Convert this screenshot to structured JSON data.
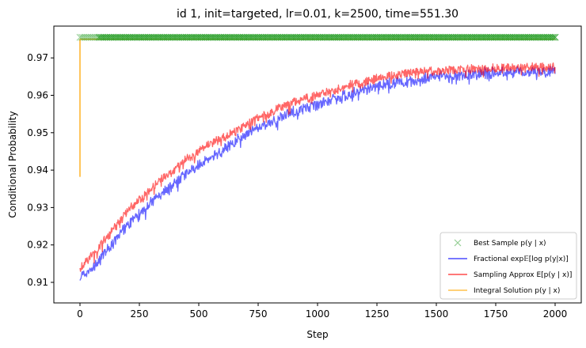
{
  "chart_data": {
    "type": "line",
    "title": "id 1, init=targeted, lr=0.01, k=2500, time=551.30",
    "xlabel": "Step",
    "ylabel": "Conditional Probability",
    "xlim": [
      -110,
      2110
    ],
    "ylim": [
      0.9045,
      0.9785
    ],
    "xticks": [
      0,
      250,
      500,
      750,
      1000,
      1250,
      1500,
      1750,
      2000
    ],
    "yticks": [
      0.91,
      0.92,
      0.93,
      0.94,
      0.95,
      0.96,
      0.97
    ],
    "ytick_labels": [
      "0.91",
      "0.92",
      "0.93",
      "0.94",
      "0.95",
      "0.96",
      "0.97"
    ],
    "grid": false,
    "legend_position": "lower-right",
    "series": [
      {
        "name": "Best Sample p(y | x)",
        "kind": "scatter-x",
        "color": "#2ca02c",
        "constant_y": 0.9755,
        "x_range": [
          0,
          2000
        ],
        "note_values": "one x-marker per step, all at ~0.9755"
      },
      {
        "name": "Fractional exp E[log p(y|x)]",
        "kind": "line",
        "color": "#0000ff",
        "alpha": 0.6,
        "x": [
          0,
          50,
          100,
          150,
          200,
          250,
          300,
          350,
          400,
          450,
          500,
          550,
          600,
          650,
          700,
          750,
          800,
          850,
          900,
          950,
          1000,
          1050,
          1100,
          1150,
          1200,
          1250,
          1300,
          1350,
          1400,
          1450,
          1500,
          1550,
          1600,
          1650,
          1700,
          1750,
          1800,
          1850,
          1900,
          1950,
          2000
        ],
        "y": [
          0.912,
          0.914,
          0.918,
          0.922,
          0.926,
          0.929,
          0.932,
          0.935,
          0.937,
          0.94,
          0.942,
          0.944,
          0.946,
          0.948,
          0.95,
          0.952,
          0.953,
          0.955,
          0.956,
          0.957,
          0.958,
          0.959,
          0.96,
          0.961,
          0.962,
          0.963,
          0.9635,
          0.964,
          0.9645,
          0.965,
          0.9655,
          0.9658,
          0.966,
          0.9662,
          0.9664,
          0.9665,
          0.9666,
          0.9667,
          0.9668,
          0.9669,
          0.967
        ]
      },
      {
        "name": "Sampling Approx E[p(y | x)]",
        "kind": "line",
        "color": "#ff0000",
        "alpha": 0.6,
        "x": [
          0,
          50,
          100,
          150,
          200,
          250,
          300,
          350,
          400,
          450,
          500,
          550,
          600,
          650,
          700,
          750,
          800,
          850,
          900,
          950,
          1000,
          1050,
          1100,
          1150,
          1200,
          1250,
          1300,
          1350,
          1400,
          1450,
          1500,
          1550,
          1600,
          1650,
          1700,
          1750,
          1800,
          1850,
          1900,
          1950,
          2000
        ],
        "y": [
          0.914,
          0.917,
          0.921,
          0.925,
          0.929,
          0.932,
          0.935,
          0.938,
          0.94,
          0.943,
          0.945,
          0.947,
          0.949,
          0.95,
          0.952,
          0.954,
          0.955,
          0.957,
          0.958,
          0.959,
          0.96,
          0.961,
          0.962,
          0.963,
          0.9635,
          0.9645,
          0.965,
          0.9655,
          0.966,
          0.9663,
          0.9665,
          0.9667,
          0.9669,
          0.967,
          0.9671,
          0.9672,
          0.9673,
          0.9674,
          0.9675,
          0.9675,
          0.9676
        ]
      },
      {
        "name": "Integral Solution p(y | x)",
        "kind": "line",
        "color": "#ffa500",
        "alpha": 0.8,
        "x": [
          0,
          0,
          1,
          2000
        ],
        "y": [
          0.9382,
          0.9748,
          0.975,
          0.975
        ]
      }
    ]
  },
  "legend": {
    "entries": [
      {
        "label": "Best Sample p(y | x)",
        "color": "#2ca02c",
        "marker": "x"
      },
      {
        "label": "Fractional exp𝔼[log p(y|x)]",
        "color": "#0000ff",
        "marker": "line"
      },
      {
        "label": "Sampling Approx E[p(y | x)]",
        "color": "#ff0000",
        "marker": "line"
      },
      {
        "label": "Integral Solution p(y | x)",
        "color": "#ffa500",
        "marker": "line"
      }
    ]
  }
}
